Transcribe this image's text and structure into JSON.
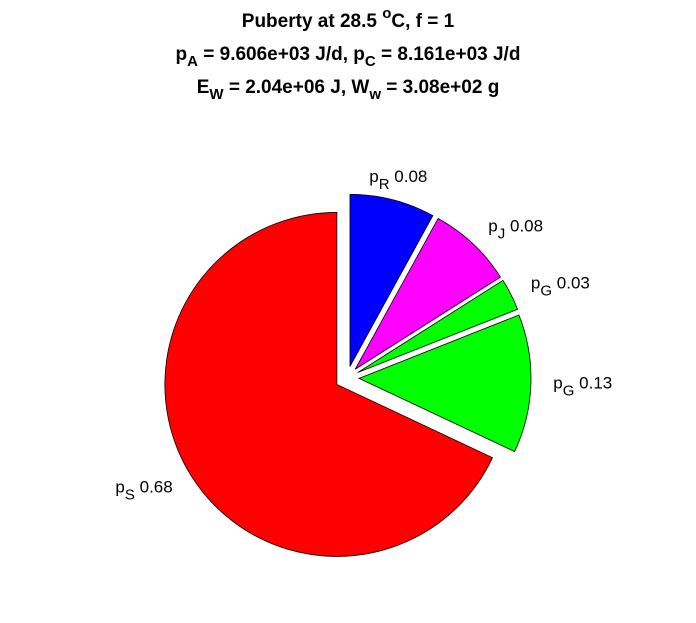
{
  "chart_data": {
    "type": "pie",
    "title_lines": [
      [
        {
          "text": "Puberty at 28.5 "
        },
        {
          "text": "o",
          "shift": "sup"
        },
        {
          "text": "C, f = 1"
        }
      ],
      [
        {
          "text": "p"
        },
        {
          "text": "A",
          "shift": "sub"
        },
        {
          "text": " = 9.606e+03 J/d,  p"
        },
        {
          "text": "C",
          "shift": "sub"
        },
        {
          "text": " = 8.161e+03 J/d"
        }
      ],
      [
        {
          "text": "E"
        },
        {
          "text": "W",
          "shift": "sub"
        },
        {
          "text": " = 2.04e+06 J, W"
        },
        {
          "text": "w",
          "shift": "sub"
        },
        {
          "text": " = 3.08e+02 g"
        }
      ]
    ],
    "labels": [
      {
        "base": "p",
        "sub": "R"
      },
      {
        "base": "p",
        "sub": "J"
      },
      {
        "base": "p",
        "sub": "G"
      },
      {
        "base": "p",
        "sub": "G"
      },
      {
        "base": "p",
        "sub": "S"
      }
    ],
    "values": [
      0.08,
      0.08,
      0.03,
      0.13,
      0.68
    ],
    "colors": [
      "#0000ff",
      "#ff00ff",
      "#00ff00",
      "#00ff00",
      "#ff0000"
    ],
    "explode": true,
    "direction": "clockwise"
  }
}
